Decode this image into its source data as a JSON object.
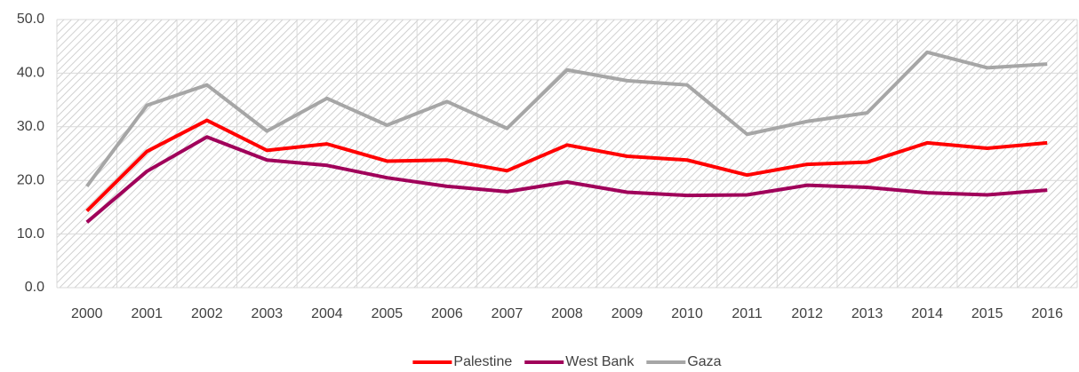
{
  "chart_data": {
    "type": "line",
    "categories": [
      "2000",
      "2001",
      "2002",
      "2003",
      "2004",
      "2005",
      "2006",
      "2007",
      "2008",
      "2009",
      "2010",
      "2011",
      "2012",
      "2013",
      "2014",
      "2015",
      "2016"
    ],
    "series": [
      {
        "name": "Palestine",
        "color": "#ff0000",
        "values": [
          14.3,
          25.4,
          31.2,
          25.6,
          26.8,
          23.6,
          23.8,
          21.8,
          26.6,
          24.5,
          23.8,
          21.0,
          23.0,
          23.4,
          27.0,
          26.0,
          27.0
        ]
      },
      {
        "name": "West Bank",
        "color": "#a0005a",
        "values": [
          12.2,
          21.7,
          28.1,
          23.8,
          22.8,
          20.5,
          18.9,
          17.9,
          19.7,
          17.8,
          17.2,
          17.3,
          19.1,
          18.7,
          17.7,
          17.3,
          18.2
        ]
      },
      {
        "name": "Gaza",
        "color": "#a6a6a6",
        "values": [
          18.9,
          34.0,
          37.8,
          29.2,
          35.3,
          30.3,
          34.7,
          29.7,
          40.6,
          38.6,
          37.8,
          28.6,
          31.0,
          32.6,
          43.9,
          41.0,
          41.7
        ]
      }
    ],
    "ylim": [
      0,
      50
    ],
    "yticks": [
      {
        "value": 0,
        "label": "0.0"
      },
      {
        "value": 10,
        "label": "10.0"
      },
      {
        "value": 20,
        "label": "20.0"
      },
      {
        "value": 30,
        "label": "30.0"
      },
      {
        "value": 40,
        "label": "40.0"
      },
      {
        "value": 50,
        "label": "50.0"
      }
    ],
    "grid": true,
    "legend": "bottom"
  }
}
